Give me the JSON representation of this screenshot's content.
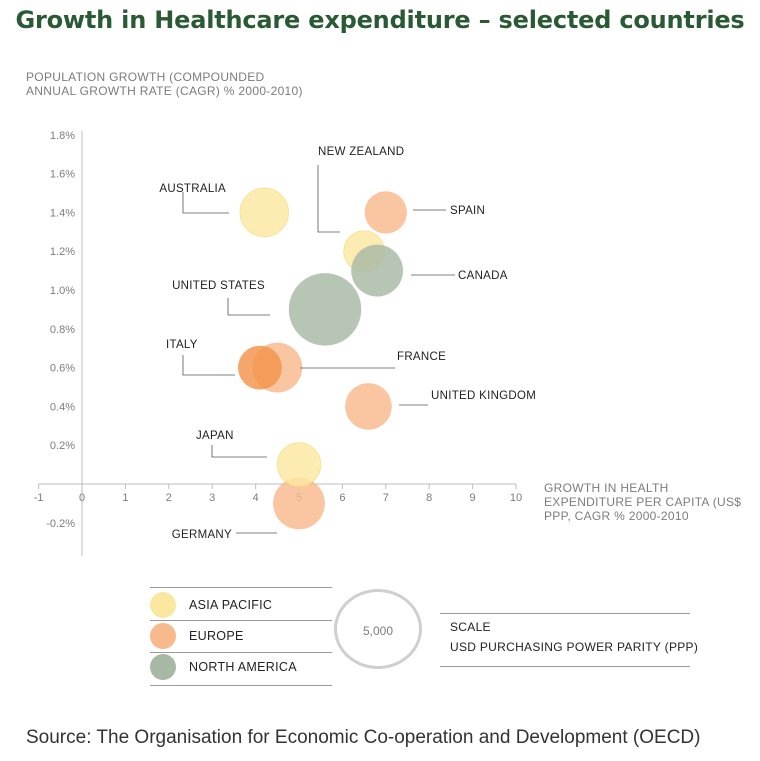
{
  "title": "Growth in Healthcare expenditure – selected countries",
  "colors": {
    "asia_pacific": "#fbe8a0",
    "europe": "#f8b98c",
    "north_america": "#a7b8a5",
    "europe_highlight": "#f3924a"
  },
  "chart_data": {
    "type": "scatter",
    "title": "Growth in Healthcare expenditure – selected countries",
    "ylabel": "POPULATION GROWTH (COMPOUNDED ANNUAL GROWTH RATE (CAGR) % 2000-2010)",
    "xlabel": "GROWTH IN HEALTH EXPENDITURE PER CAPITA (US$ PPP, CAGR % 2000-2010",
    "xlim": [
      -1,
      10
    ],
    "ylim": [
      -0.3,
      1.8
    ],
    "x_ticks": [
      "-1",
      "0",
      "1",
      "2",
      "3",
      "4",
      "5",
      "6",
      "7",
      "8",
      "9",
      "10"
    ],
    "y_ticks": [
      "1.8%",
      "1.6%",
      "1.4%",
      "1.2%",
      "1.0%",
      "0.8%",
      "0.6%",
      "0.4%",
      "0.2%",
      "-0.2%"
    ],
    "bubble_size": "health expenditure per capita (USD PPP)",
    "points": [
      {
        "label": "AUSTRALIA",
        "region": "asia_pacific",
        "x": 4.2,
        "y": 1.4,
        "size": 3700
      },
      {
        "label": "NEW ZEALAND",
        "region": "asia_pacific",
        "x": 6.5,
        "y": 1.2,
        "size": 2600
      },
      {
        "label": "SPAIN",
        "region": "europe",
        "x": 7.0,
        "y": 1.4,
        "size": 2800
      },
      {
        "label": "CANADA",
        "region": "north_america",
        "x": 6.8,
        "y": 1.1,
        "size": 4200
      },
      {
        "label": "UNITED STATES",
        "region": "north_america",
        "x": 5.6,
        "y": 0.9,
        "size": 8200
      },
      {
        "label": "FRANCE",
        "region": "europe",
        "x": 4.5,
        "y": 0.6,
        "size": 3900
      },
      {
        "label": "ITALY",
        "region": "europe_highlight",
        "x": 4.1,
        "y": 0.6,
        "size": 3000
      },
      {
        "label": "UNITED KINGDOM",
        "region": "europe",
        "x": 6.6,
        "y": 0.4,
        "size": 3400
      },
      {
        "label": "JAPAN",
        "region": "asia_pacific",
        "x": 5.0,
        "y": 0.1,
        "size": 3000
      },
      {
        "label": "GERMANY",
        "region": "europe",
        "x": 5.0,
        "y": -0.1,
        "size": 4200
      }
    ]
  },
  "legend": [
    {
      "label": "ASIA PACIFIC",
      "color": "#fbe8a0"
    },
    {
      "label": "EUROPE",
      "color": "#f8b98c"
    },
    {
      "label": "NORTH AMERICA",
      "color": "#a7b8a5"
    }
  ],
  "scale": {
    "value": "5,000",
    "title": "SCALE",
    "description": "USD PURCHASING POWER PARITY (PPP)"
  },
  "source": "Source: The Organisation for Economic Co-operation and Development (OECD)"
}
